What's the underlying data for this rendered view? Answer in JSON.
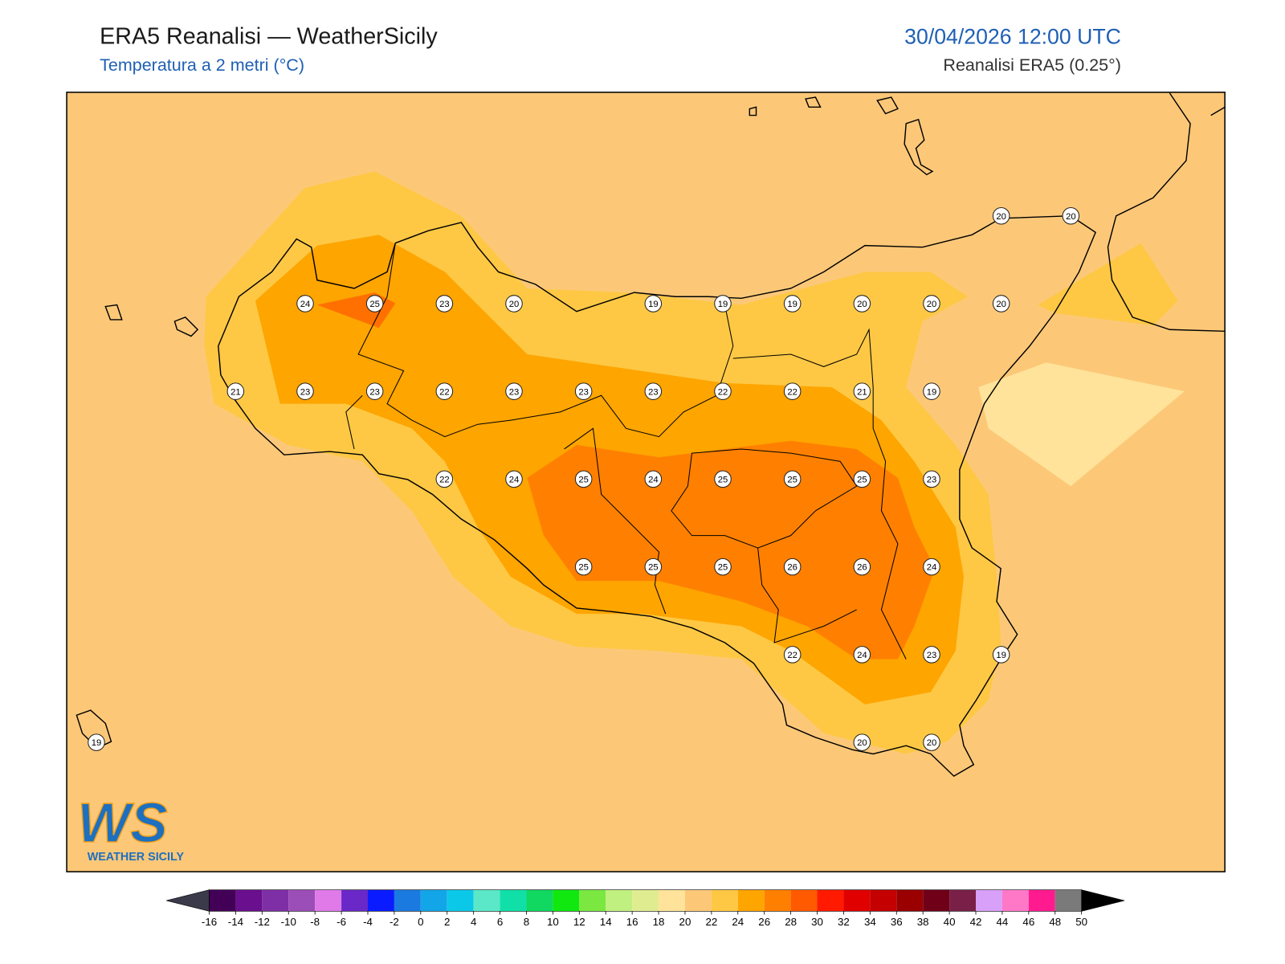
{
  "header": {
    "title": "ERA5 Reanalisi — WeatherSicily",
    "subtitle": "Temperatura a 2 metri (°C)",
    "datetime": "30/04/2026 12:00 UTC",
    "source": "Reanalisi ERA5 (0.25°)"
  },
  "stations": [
    [
      null,
      null,
      null,
      null,
      null,
      null,
      null,
      null,
      null,
      null,
      null,
      null,
      null,
      20,
      20
    ],
    [
      null,
      null,
      null,
      24,
      25,
      23,
      20,
      null,
      19,
      19,
      19,
      20,
      20,
      20,
      null
    ],
    [
      null,
      null,
      21,
      23,
      23,
      22,
      23,
      23,
      23,
      22,
      22,
      21,
      19,
      null,
      null
    ],
    [
      null,
      null,
      null,
      null,
      null,
      22,
      24,
      25,
      24,
      25,
      25,
      25,
      23,
      null,
      null
    ],
    [
      null,
      null,
      null,
      null,
      null,
      null,
      null,
      25,
      25,
      25,
      26,
      26,
      24,
      null,
      null
    ],
    [
      null,
      null,
      null,
      null,
      null,
      null,
      null,
      null,
      null,
      null,
      22,
      24,
      23,
      19,
      null
    ],
    [
      19,
      null,
      null,
      null,
      null,
      null,
      null,
      null,
      null,
      null,
      null,
      20,
      20,
      null,
      null
    ]
  ],
  "colorbar": {
    "ticks": [
      -16,
      -14,
      -12,
      -10,
      -8,
      -6,
      -4,
      -2,
      0,
      2,
      4,
      6,
      8,
      10,
      12,
      14,
      16,
      18,
      20,
      22,
      24,
      26,
      28,
      30,
      32,
      34,
      36,
      38,
      40,
      42,
      44,
      46,
      48,
      50
    ],
    "colors": [
      "#420057",
      "#6a0f8e",
      "#7e2fa6",
      "#9b4db8",
      "#e07ae8",
      "#6a28c8",
      "#0a1cff",
      "#1a7ae0",
      "#12a6e8",
      "#0cc8e8",
      "#5ae8c8",
      "#10e0a8",
      "#10d860",
      "#10e810",
      "#7ae840",
      "#c0f080",
      "#e0ec90",
      "#ffe39a",
      "#fcc878",
      "#fec844",
      "#fea500",
      "#ff8000",
      "#ff5a00",
      "#ff1a00",
      "#e00000",
      "#c40000",
      "#9a0000",
      "#700018",
      "#7a2048",
      "#d8a0f8",
      "#ff78c8",
      "#ff1a90",
      "#7a7a7a",
      "#3a3a3a"
    ],
    "under": "#3a3a4a",
    "over": "#000000"
  },
  "logo": {
    "mark": "WS",
    "name": "WEATHER SICILY"
  }
}
